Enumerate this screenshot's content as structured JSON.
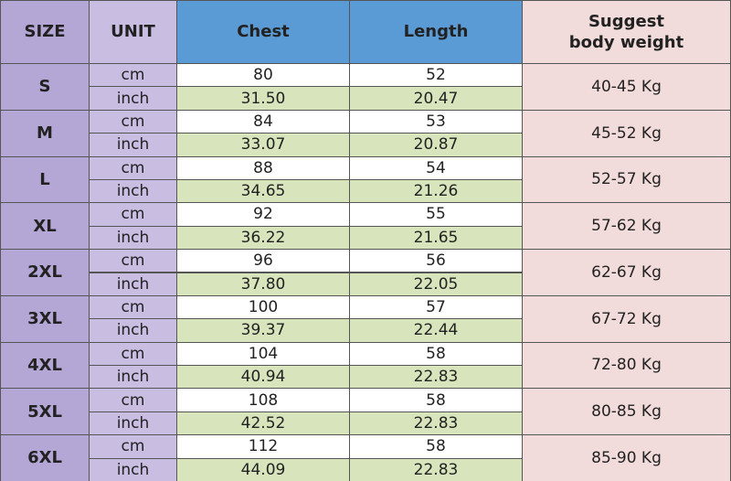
{
  "header": {
    "size": "SIZE",
    "unit": "UNIT",
    "chest": "Chest",
    "length": "Length",
    "weight": "Suggest\nbody weight"
  },
  "rows": [
    {
      "size": "S",
      "units": [
        "cm",
        "inch"
      ],
      "chest": [
        "80",
        "31.50"
      ],
      "length": [
        "52",
        "20.47"
      ],
      "weight": "40-45 Kg"
    },
    {
      "size": "M",
      "units": [
        "cm",
        "inch"
      ],
      "chest": [
        "84",
        "33.07"
      ],
      "length": [
        "53",
        "20.87"
      ],
      "weight": "45-52 Kg"
    },
    {
      "size": "L",
      "units": [
        "cm",
        "inch"
      ],
      "chest": [
        "88",
        "34.65"
      ],
      "length": [
        "54",
        "21.26"
      ],
      "weight": "52-57 Kg"
    },
    {
      "size": "XL",
      "units": [
        "cm",
        "inch"
      ],
      "chest": [
        "92",
        "36.22"
      ],
      "length": [
        "55",
        "21.65"
      ],
      "weight": "57-62 Kg"
    },
    {
      "size": "2XL",
      "units": [
        "cm",
        "inch"
      ],
      "chest": [
        "96",
        "37.80"
      ],
      "length": [
        "56",
        "22.05"
      ],
      "weight": "62-67 Kg"
    },
    {
      "size": "3XL",
      "units": [
        "cm",
        "inch"
      ],
      "chest": [
        "100",
        "39.37"
      ],
      "length": [
        "57",
        "22.44"
      ],
      "weight": "67-72 Kg"
    },
    {
      "size": "4XL",
      "units": [
        "cm",
        "inch"
      ],
      "chest": [
        "104",
        "40.94"
      ],
      "length": [
        "58",
        "22.83"
      ],
      "weight": "72-80 Kg"
    },
    {
      "size": "5XL",
      "units": [
        "cm",
        "inch"
      ],
      "chest": [
        "108",
        "42.52"
      ],
      "length": [
        "58",
        "22.83"
      ],
      "weight": "80-85 Kg"
    },
    {
      "size": "6XL",
      "units": [
        "cm",
        "inch"
      ],
      "chest": [
        "112",
        "44.09"
      ],
      "length": [
        "58",
        "22.83"
      ],
      "weight": "85-90 Kg"
    }
  ]
}
